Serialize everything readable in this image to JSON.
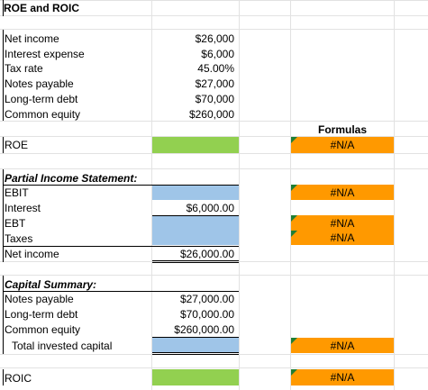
{
  "title": "ROE and ROIC",
  "inputs": [
    {
      "label": "Net income",
      "value": "$26,000"
    },
    {
      "label": "Interest expense",
      "value": "$6,000"
    },
    {
      "label": "Tax rate",
      "value": "45.00%"
    },
    {
      "label": "Notes payable",
      "value": "$27,000"
    },
    {
      "label": "Long-term debt",
      "value": "$70,000"
    },
    {
      "label": "Common equity",
      "value": "$260,000"
    }
  ],
  "formulas_header": "Formulas",
  "roe": {
    "label": "ROE",
    "formula": "#N/A"
  },
  "income_statement": {
    "header": "Partial Income Statement:",
    "ebit": {
      "label": "EBIT",
      "formula": "#N/A"
    },
    "interest": {
      "label": "Interest",
      "value": "$6,000.00"
    },
    "ebt": {
      "label": "EBT",
      "formula": "#N/A"
    },
    "taxes": {
      "label": "Taxes",
      "formula": "#N/A"
    },
    "net_income": {
      "label": "Net income",
      "value": "$26,000.00"
    }
  },
  "capital_summary": {
    "header": "Capital Summary:",
    "notes_payable": {
      "label": "Notes payable",
      "value": "$27,000.00"
    },
    "long_term_debt": {
      "label": "Long-term debt",
      "value": "$70,000.00"
    },
    "common_equity": {
      "label": "Common equity",
      "value": "$260,000.00"
    },
    "total": {
      "label": "Total invested capital",
      "formula": "#N/A"
    }
  },
  "roic": {
    "label": "ROIC",
    "formula": "#N/A"
  },
  "colors": {
    "input_green": "#92d050",
    "input_blue": "#9fc5e8",
    "formula_orange": "#ff9900",
    "error_flag": "#1e7e34"
  }
}
